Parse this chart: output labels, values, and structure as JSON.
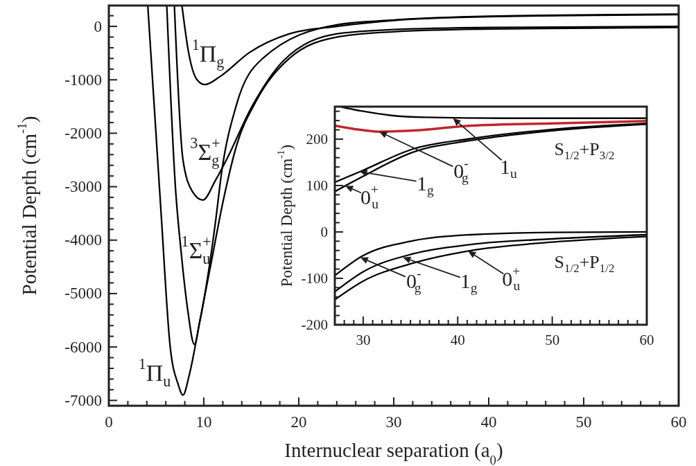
{
  "chart_data": [
    {
      "type": "line",
      "xlabel": "Internuclear separation (a$_{0}$)",
      "ylabel": "Potential Depth (cm$^{-1}$)",
      "xlim": [
        0,
        60
      ],
      "ylim": [
        -7100,
        390
      ],
      "xticks": [
        0,
        {
          "value": 2,
          "label": null
        },
        {
          "value": 4,
          "label": null
        },
        {
          "value": 6,
          "label": null
        },
        {
          "value": 8,
          "label": null
        },
        10,
        {
          "value": 12,
          "label": null
        },
        {
          "value": 14,
          "label": null
        },
        {
          "value": 16,
          "label": null
        },
        {
          "value": 18,
          "label": null
        },
        20,
        {
          "value": 22,
          "label": null
        },
        {
          "value": 24,
          "label": null
        },
        {
          "value": 26,
          "label": null
        },
        {
          "value": 28,
          "label": null
        },
        30,
        {
          "value": 32,
          "label": null
        },
        {
          "value": 34,
          "label": null
        },
        {
          "value": 36,
          "label": null
        },
        {
          "value": 38,
          "label": null
        },
        40,
        {
          "value": 42,
          "label": null
        },
        {
          "value": 44,
          "label": null
        },
        {
          "value": 46,
          "label": null
        },
        {
          "value": 48,
          "label": null
        },
        50,
        {
          "value": 52,
          "label": null
        },
        {
          "value": 54,
          "label": null
        },
        {
          "value": 56,
          "label": null
        },
        {
          "value": 58,
          "label": null
        },
        60
      ],
      "yticks": [
        -7000,
        {
          "value": -6800,
          "label": null
        },
        {
          "value": -6600,
          "label": null
        },
        {
          "value": -6400,
          "label": null
        },
        {
          "value": -6200,
          "label": null
        },
        -6000,
        {
          "value": -5800,
          "label": null
        },
        {
          "value": -5600,
          "label": null
        },
        {
          "value": -5400,
          "label": null
        },
        {
          "value": -5200,
          "label": null
        },
        -5000,
        {
          "value": -4800,
          "label": null
        },
        {
          "value": -4600,
          "label": null
        },
        {
          "value": -4400,
          "label": null
        },
        {
          "value": -4200,
          "label": null
        },
        -4000,
        {
          "value": -3800,
          "label": null
        },
        {
          "value": -3600,
          "label": null
        },
        {
          "value": -3400,
          "label": null
        },
        {
          "value": -3200,
          "label": null
        },
        -3000,
        {
          "value": -2800,
          "label": null
        },
        {
          "value": -2600,
          "label": null
        },
        {
          "value": -2400,
          "label": null
        },
        {
          "value": -2200,
          "label": null
        },
        -2000,
        {
          "value": -1800,
          "label": null
        },
        {
          "value": -1600,
          "label": null
        },
        {
          "value": -1400,
          "label": null
        },
        {
          "value": -1200,
          "label": null
        },
        -1000,
        {
          "value": -800,
          "label": null
        },
        {
          "value": -600,
          "label": null
        },
        {
          "value": -400,
          "label": null
        },
        {
          "value": -200,
          "label": null
        },
        0,
        {
          "value": 200,
          "label": null
        }
      ],
      "series": [
        {
          "color": "#000000",
          "x": [
            4.1,
            5.5,
            6.45,
            7.3,
            7.8,
            8.5,
            9.6,
            10.8,
            12.0,
            13.5,
            15.5,
            19,
            24,
            30,
            40,
            60
          ],
          "values": [
            390,
            -3490,
            -5980,
            -6700,
            -6900,
            -6500,
            -5500,
            -4400,
            -3300,
            -2200,
            -1400,
            -600,
            -200,
            -100,
            -50,
            -20
          ]
        },
        {
          "color": "#000000",
          "x": [
            6.1,
            7.0,
            7.6,
            8.3,
            9.0,
            9.6,
            10.4,
            11.2,
            11.9,
            13.4,
            16.2,
            24,
            30,
            40,
            60
          ],
          "values": [
            390,
            -2980,
            -4200,
            -5300,
            -5950,
            -5500,
            -4700,
            -3700,
            -2700,
            -1490,
            -600,
            30,
            120,
            190,
            230
          ]
        },
        {
          "color": "#000000",
          "x": [
            6.9,
            7.8,
            8.8,
            9.9,
            11.2,
            12.4,
            15.1,
            18.4,
            24,
            30,
            40,
            60
          ],
          "values": [
            390,
            -2490,
            -3090,
            -3250,
            -2890,
            -2490,
            -1490,
            -640,
            -140,
            -60,
            -20,
            0
          ]
        },
        {
          "color": "#000000",
          "x": [
            7.7,
            8.4,
            9.25,
            10.1,
            11.7,
            14.8,
            19,
            24,
            30,
            40,
            60
          ],
          "values": [
            390,
            -490,
            -990,
            -1090,
            -940,
            -490,
            -140,
            0,
            110,
            180,
            220
          ]
        }
      ],
      "annotations": [
        "$^{1}$Π$_{g}$",
        "$^{3}$Σ$_{g}$$^{+}$",
        "$^{1}$Σ$_{u}$$^{+}$",
        "$^{1}$Π$_{u}$"
      ]
    },
    {
      "type": "line",
      "ylabel": "Potential Depth (cm$^{-1}$)",
      "xlim": [
        27,
        60
      ],
      "ylim": [
        -200,
        270
      ],
      "xticks": [
        {
          "value": 28,
          "label": null
        },
        {
          "value": 29,
          "label": null
        },
        30,
        {
          "value": 31,
          "label": null
        },
        {
          "value": 32,
          "label": null
        },
        {
          "value": 33,
          "label": null
        },
        {
          "value": 34,
          "label": null
        },
        {
          "value": 35,
          "label": null
        },
        {
          "value": 36,
          "label": null
        },
        {
          "value": 37,
          "label": null
        },
        {
          "value": 38,
          "label": null
        },
        {
          "value": 39,
          "label": null
        },
        40,
        {
          "value": 41,
          "label": null
        },
        {
          "value": 42,
          "label": null
        },
        {
          "value": 43,
          "label": null
        },
        {
          "value": 44,
          "label": null
        },
        {
          "value": 45,
          "label": null
        },
        {
          "value": 46,
          "label": null
        },
        {
          "value": 47,
          "label": null
        },
        {
          "value": 48,
          "label": null
        },
        {
          "value": 49,
          "label": null
        },
        50,
        {
          "value": 51,
          "label": null
        },
        {
          "value": 52,
          "label": null
        },
        {
          "value": 53,
          "label": null
        },
        {
          "value": 54,
          "label": null
        },
        {
          "value": 55,
          "label": null
        },
        {
          "value": 56,
          "label": null
        },
        {
          "value": 57,
          "label": null
        },
        {
          "value": 58,
          "label": null
        },
        {
          "value": 59,
          "label": null
        },
        60
      ],
      "yticks": [
        -200,
        {
          "value": -180,
          "label": null
        },
        {
          "value": -160,
          "label": null
        },
        {
          "value": -140,
          "label": null
        },
        {
          "value": -120,
          "label": null
        },
        -100,
        {
          "value": -80,
          "label": null
        },
        {
          "value": -60,
          "label": null
        },
        {
          "value": -40,
          "label": null
        },
        {
          "value": -20,
          "label": null
        },
        0,
        {
          "value": 20,
          "label": null
        },
        {
          "value": 40,
          "label": null
        },
        {
          "value": 60,
          "label": null
        },
        {
          "value": 80,
          "label": null
        },
        100,
        {
          "value": 120,
          "label": null
        },
        {
          "value": 140,
          "label": null
        },
        {
          "value": 160,
          "label": null
        },
        {
          "value": 180,
          "label": null
        },
        200,
        {
          "value": 220,
          "label": null
        },
        {
          "value": 240,
          "label": null
        },
        {
          "value": 260,
          "label": null
        }
      ],
      "series": [
        {
          "color": "#000000",
          "x": [
            27.7,
            30,
            33,
            36.5,
            45,
            60
          ],
          "values": [
            269,
            260,
            251,
            247,
            245,
            245
          ]
        },
        {
          "color": "#c0272d",
          "x": [
            27,
            29,
            31.7,
            35,
            41.4,
            50,
            60
          ],
          "values": [
            229,
            222,
            216,
            218,
            229,
            234,
            239
          ]
        },
        {
          "color": "#000000",
          "x": [
            27,
            29.9,
            35.3,
            41.4,
            50,
            60
          ],
          "values": [
            107,
            132,
            179,
            201,
            221,
            234
          ]
        },
        {
          "color": "#000000",
          "x": [
            27,
            29.9,
            35.3,
            41.4,
            50,
            60
          ],
          "values": [
            87,
            119,
            172,
            197,
            218,
            232
          ]
        },
        {
          "color": "#000000",
          "x": [
            27,
            29.9,
            35.3,
            41.4,
            50,
            60
          ],
          "values": [
            -94,
            -52,
            -19,
            -6,
            -1,
            0
          ]
        },
        {
          "color": "#000000",
          "x": [
            27,
            29.9,
            35.3,
            41.4,
            50,
            60
          ],
          "values": [
            -129,
            -87,
            -47,
            -27,
            -15,
            -6
          ]
        },
        {
          "color": "#000000",
          "x": [
            27,
            29.9,
            35.3,
            41.4,
            50,
            60
          ],
          "values": [
            -146,
            -107,
            -67,
            -40,
            -22,
            -10
          ]
        }
      ],
      "annotations": [
        "0$^{-}$$_{g}$",
        {
          "text": "1$_{u}$",
          "x": 39.5,
          "y": 245
        },
        {
          "text": "1$_{g}$",
          "x": 29.6,
          "y": 130
        },
        {
          "text": "0$^{+}$$_{u}$",
          "x": 28.1,
          "y": 99
        },
        {
          "text": "0$^{-}$$_{g}$",
          "x": 29.7,
          "y": -55
        },
        {
          "text": "1$_{g}$",
          "x": 34.2,
          "y": -55
        },
        {
          "text": "0$^{+}$$_{u}$",
          "x": 41.1,
          "y": -41
        },
        "S$_{1/2}$+P$_{3/2}$",
        "S$_{1/2}$+P$_{1/2}$"
      ]
    }
  ]
}
